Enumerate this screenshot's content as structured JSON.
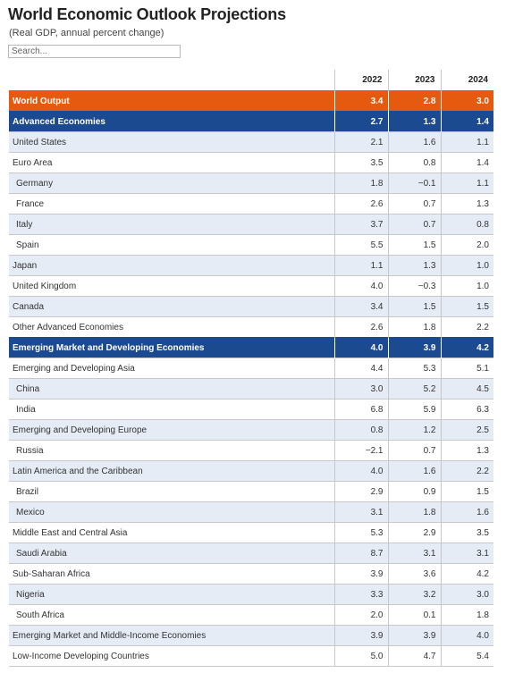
{
  "header": {
    "title": "World Economic Outlook Projections",
    "subtitle": "(Real GDP, annual percent change)",
    "search_placeholder": "Search..."
  },
  "table": {
    "columns": [
      "",
      "2022",
      "2023",
      "2024"
    ],
    "rows": [
      {
        "name": "World Output",
        "values": [
          "3.4",
          "2.8",
          "3.0"
        ],
        "style": "orange",
        "indent": false
      },
      {
        "name": "Advanced Economies",
        "values": [
          "2.7",
          "1.3",
          "1.4"
        ],
        "style": "navy",
        "indent": false
      },
      {
        "name": "United States",
        "values": [
          "2.1",
          "1.6",
          "1.1"
        ],
        "style": "alt",
        "indent": false
      },
      {
        "name": "Euro Area",
        "values": [
          "3.5",
          "0.8",
          "1.4"
        ],
        "style": "plain",
        "indent": false
      },
      {
        "name": "Germany",
        "values": [
          "1.8",
          "−0.1",
          "1.1"
        ],
        "style": "alt",
        "indent": true
      },
      {
        "name": "France",
        "values": [
          "2.6",
          "0.7",
          "1.3"
        ],
        "style": "plain",
        "indent": true
      },
      {
        "name": "Italy",
        "values": [
          "3.7",
          "0.7",
          "0.8"
        ],
        "style": "alt",
        "indent": true
      },
      {
        "name": "Spain",
        "values": [
          "5.5",
          "1.5",
          "2.0"
        ],
        "style": "plain",
        "indent": true
      },
      {
        "name": "Japan",
        "values": [
          "1.1",
          "1.3",
          "1.0"
        ],
        "style": "alt",
        "indent": false
      },
      {
        "name": "United Kingdom",
        "values": [
          "4.0",
          "−0.3",
          "1.0"
        ],
        "style": "plain",
        "indent": false
      },
      {
        "name": "Canada",
        "values": [
          "3.4",
          "1.5",
          "1.5"
        ],
        "style": "alt",
        "indent": false
      },
      {
        "name": "Other Advanced Economies",
        "values": [
          "2.6",
          "1.8",
          "2.2"
        ],
        "style": "plain",
        "indent": false
      },
      {
        "name": "Emerging Market and Developing Economies",
        "values": [
          "4.0",
          "3.9",
          "4.2"
        ],
        "style": "navy",
        "indent": false
      },
      {
        "name": "Emerging and Developing Asia",
        "values": [
          "4.4",
          "5.3",
          "5.1"
        ],
        "style": "plain",
        "indent": false
      },
      {
        "name": "China",
        "values": [
          "3.0",
          "5.2",
          "4.5"
        ],
        "style": "alt",
        "indent": true
      },
      {
        "name": "India",
        "values": [
          "6.8",
          "5.9",
          "6.3"
        ],
        "style": "plain",
        "indent": true
      },
      {
        "name": "Emerging and Developing Europe",
        "values": [
          "0.8",
          "1.2",
          "2.5"
        ],
        "style": "alt",
        "indent": false
      },
      {
        "name": "Russia",
        "values": [
          "−2.1",
          "0.7",
          "1.3"
        ],
        "style": "plain",
        "indent": true
      },
      {
        "name": "Latin America and the Caribbean",
        "values": [
          "4.0",
          "1.6",
          "2.2"
        ],
        "style": "alt",
        "indent": false
      },
      {
        "name": "Brazil",
        "values": [
          "2.9",
          "0.9",
          "1.5"
        ],
        "style": "plain",
        "indent": true
      },
      {
        "name": "Mexico",
        "values": [
          "3.1",
          "1.8",
          "1.6"
        ],
        "style": "alt",
        "indent": true
      },
      {
        "name": "Middle East and Central Asia",
        "values": [
          "5.3",
          "2.9",
          "3.5"
        ],
        "style": "plain",
        "indent": false
      },
      {
        "name": "Saudi Arabia",
        "values": [
          "8.7",
          "3.1",
          "3.1"
        ],
        "style": "alt",
        "indent": true
      },
      {
        "name": "Sub-Saharan Africa",
        "values": [
          "3.9",
          "3.6",
          "4.2"
        ],
        "style": "plain",
        "indent": false
      },
      {
        "name": "Nigeria",
        "values": [
          "3.3",
          "3.2",
          "3.0"
        ],
        "style": "alt",
        "indent": true
      },
      {
        "name": "South Africa",
        "values": [
          "2.0",
          "0.1",
          "1.8"
        ],
        "style": "plain",
        "indent": true
      },
      {
        "name": "Emerging Market and Middle-Income Economies",
        "values": [
          "3.9",
          "3.9",
          "4.0"
        ],
        "style": "alt",
        "indent": false
      },
      {
        "name": "Low-Income Developing Countries",
        "values": [
          "5.0",
          "4.7",
          "5.4"
        ],
        "style": "plain",
        "indent": false
      }
    ]
  },
  "colors": {
    "highlight_orange": "#e55a0f",
    "highlight_navy": "#1c4a90",
    "stripe": "#e5ecf6"
  }
}
